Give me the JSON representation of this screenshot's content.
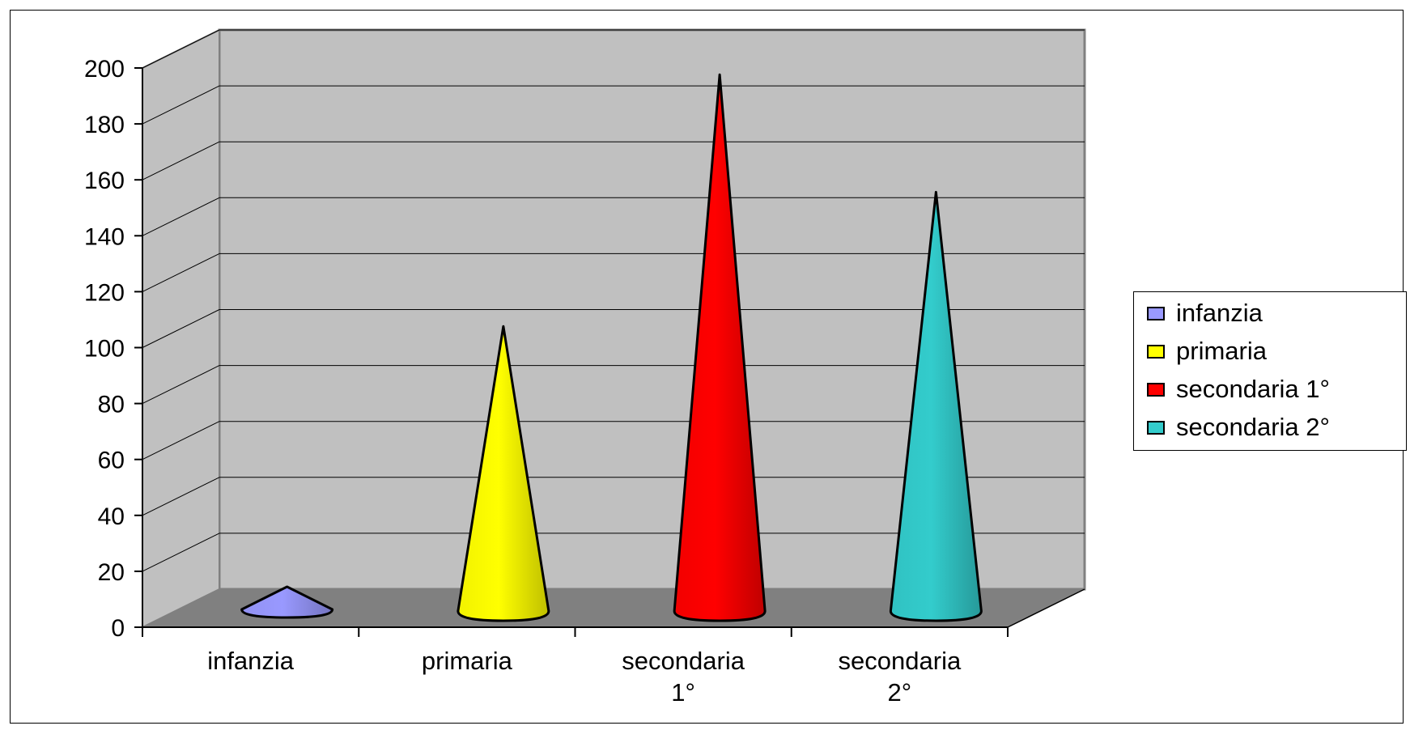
{
  "chart_data": {
    "type": "bar",
    "style": "3d-cone",
    "categories": [
      "infanzia",
      "primaria",
      "secondaria 1°",
      "secondaria 2°"
    ],
    "category_lines": [
      [
        "infanzia"
      ],
      [
        "primaria"
      ],
      [
        "secondaria",
        "1°"
      ],
      [
        "secondaria",
        "2°"
      ]
    ],
    "series": [
      {
        "name": "infanzia",
        "category": "infanzia",
        "value": 5,
        "color": "#9999ff"
      },
      {
        "name": "primaria",
        "category": "primaria",
        "value": 94,
        "color": "#ffff00"
      },
      {
        "name": "secondaria 1°",
        "category": "secondaria 1°",
        "value": 184,
        "color": "#ff0000"
      },
      {
        "name": "secondaria 2°",
        "category": "secondaria 2°",
        "value": 142,
        "color": "#33cccc"
      }
    ],
    "ylim": [
      0,
      200
    ],
    "yticks": [
      "0",
      "20",
      "40",
      "60",
      "80",
      "100",
      "120",
      "140",
      "160",
      "180",
      "200"
    ],
    "grid": true,
    "legend": "right",
    "colors": {
      "wall": "#c0c0c0",
      "floor": "#808080"
    }
  }
}
